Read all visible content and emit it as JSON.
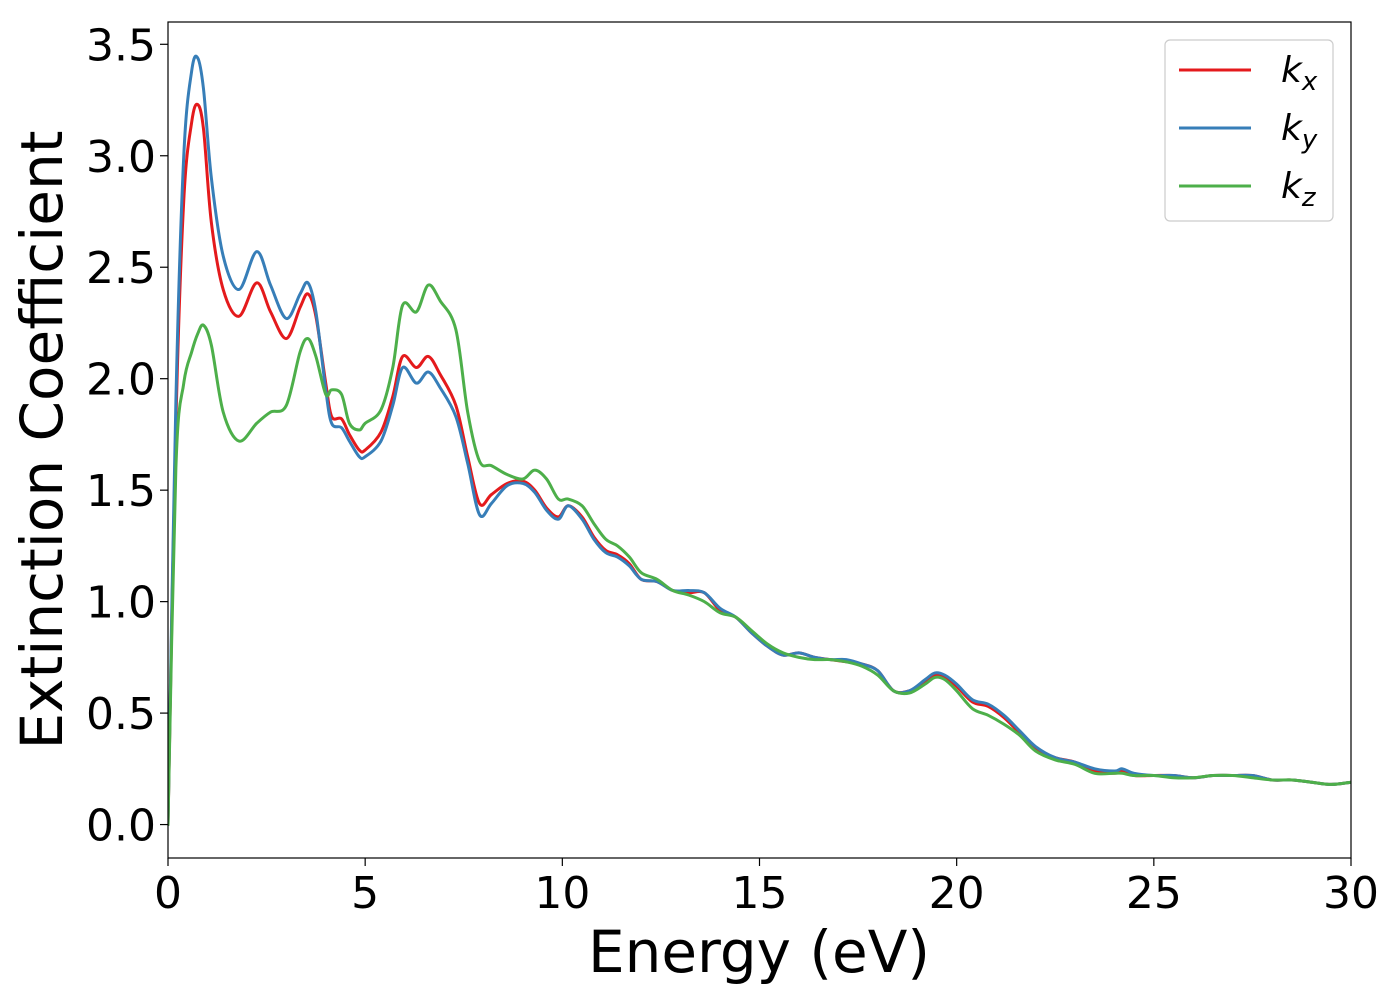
{
  "chart_data": {
    "type": "line",
    "xlabel": "Energy (eV)",
    "ylabel": "Extinction Coefficient",
    "xlim": [
      0,
      30
    ],
    "ylim": [
      -0.15,
      3.6
    ],
    "xticks": [
      0,
      5,
      10,
      15,
      20,
      25,
      30
    ],
    "xtick_labels": [
      "0",
      "5",
      "10",
      "15",
      "20",
      "25",
      "30"
    ],
    "yticks": [
      0.0,
      0.5,
      1.0,
      1.5,
      2.0,
      2.5,
      3.0,
      3.5
    ],
    "ytick_labels": [
      "0.0",
      "0.5",
      "1.0",
      "1.5",
      "2.0",
      "2.5",
      "3.0",
      "3.5"
    ],
    "grid": false,
    "legend_position": "top-right",
    "series": [
      {
        "name": "k",
        "sub": "x",
        "color": "#e41a1c",
        "x": [
          0,
          0.2,
          0.4,
          0.6,
          0.75,
          0.9,
          1.1,
          1.4,
          1.8,
          2.25,
          2.6,
          3.0,
          3.35,
          3.55,
          3.75,
          4.0,
          4.15,
          4.4,
          4.6,
          4.85,
          5.0,
          5.4,
          5.7,
          5.95,
          6.3,
          6.6,
          6.9,
          7.3,
          7.6,
          7.9,
          8.2,
          8.6,
          9.0,
          9.3,
          9.6,
          9.9,
          10.15,
          10.5,
          10.8,
          11.1,
          11.4,
          11.7,
          12.0,
          12.4,
          12.8,
          13.2,
          13.6,
          14.0,
          14.4,
          14.8,
          15.2,
          15.6,
          16.0,
          16.4,
          16.8,
          17.2,
          17.6,
          18.0,
          18.4,
          18.8,
          19.2,
          19.45,
          19.7,
          20.0,
          20.4,
          20.8,
          21.2,
          21.6,
          22.0,
          22.5,
          23.0,
          23.5,
          24.0,
          24.2,
          24.5,
          25.0,
          25.5,
          26.0,
          26.5,
          27.0,
          27.5,
          28.0,
          28.5,
          29.0,
          29.5,
          30.0
        ],
        "y": [
          0.0,
          1.8,
          2.8,
          3.15,
          3.23,
          3.12,
          2.7,
          2.4,
          2.28,
          2.43,
          2.3,
          2.18,
          2.32,
          2.38,
          2.28,
          1.98,
          1.83,
          1.82,
          1.75,
          1.68,
          1.68,
          1.76,
          1.92,
          2.1,
          2.05,
          2.1,
          2.02,
          1.88,
          1.65,
          1.44,
          1.48,
          1.53,
          1.54,
          1.5,
          1.42,
          1.38,
          1.43,
          1.38,
          1.29,
          1.23,
          1.21,
          1.17,
          1.1,
          1.09,
          1.05,
          1.04,
          1.04,
          0.96,
          0.93,
          0.86,
          0.8,
          0.76,
          0.77,
          0.75,
          0.74,
          0.73,
          0.72,
          0.69,
          0.6,
          0.6,
          0.64,
          0.67,
          0.66,
          0.62,
          0.55,
          0.53,
          0.48,
          0.41,
          0.34,
          0.3,
          0.28,
          0.24,
          0.23,
          0.24,
          0.22,
          0.22,
          0.22,
          0.21,
          0.22,
          0.22,
          0.22,
          0.2,
          0.2,
          0.19,
          0.18,
          0.19
        ]
      },
      {
        "name": "k",
        "sub": "y",
        "color": "#377eb8",
        "x": [
          0,
          0.2,
          0.4,
          0.6,
          0.75,
          0.9,
          1.1,
          1.4,
          1.8,
          2.25,
          2.6,
          3.0,
          3.35,
          3.55,
          3.75,
          4.0,
          4.15,
          4.4,
          4.6,
          4.85,
          5.0,
          5.4,
          5.7,
          5.95,
          6.3,
          6.6,
          6.9,
          7.3,
          7.6,
          7.9,
          8.2,
          8.6,
          9.0,
          9.3,
          9.6,
          9.9,
          10.15,
          10.5,
          10.8,
          11.1,
          11.4,
          11.7,
          12.0,
          12.4,
          12.8,
          13.2,
          13.6,
          14.0,
          14.4,
          14.8,
          15.2,
          15.6,
          16.0,
          16.4,
          16.8,
          17.2,
          17.6,
          18.0,
          18.4,
          18.8,
          19.2,
          19.45,
          19.7,
          20.0,
          20.4,
          20.8,
          21.2,
          21.6,
          22.0,
          22.5,
          23.0,
          23.5,
          24.0,
          24.2,
          24.5,
          25.0,
          25.5,
          26.0,
          26.5,
          27.0,
          27.5,
          28.0,
          28.5,
          29.0,
          29.5,
          30.0
        ],
        "y": [
          0.0,
          1.9,
          3.0,
          3.38,
          3.44,
          3.3,
          2.9,
          2.55,
          2.4,
          2.57,
          2.42,
          2.27,
          2.38,
          2.43,
          2.3,
          1.95,
          1.8,
          1.78,
          1.72,
          1.65,
          1.65,
          1.72,
          1.88,
          2.05,
          1.98,
          2.03,
          1.96,
          1.83,
          1.62,
          1.39,
          1.44,
          1.52,
          1.53,
          1.49,
          1.41,
          1.37,
          1.43,
          1.37,
          1.28,
          1.22,
          1.2,
          1.16,
          1.1,
          1.09,
          1.05,
          1.05,
          1.04,
          0.97,
          0.93,
          0.86,
          0.8,
          0.76,
          0.77,
          0.75,
          0.74,
          0.74,
          0.72,
          0.69,
          0.6,
          0.6,
          0.65,
          0.68,
          0.67,
          0.63,
          0.56,
          0.54,
          0.49,
          0.42,
          0.35,
          0.3,
          0.28,
          0.25,
          0.24,
          0.25,
          0.23,
          0.22,
          0.22,
          0.21,
          0.22,
          0.22,
          0.22,
          0.2,
          0.2,
          0.19,
          0.18,
          0.19
        ]
      },
      {
        "name": "k",
        "sub": "z",
        "color": "#4daf4a",
        "x": [
          0,
          0.2,
          0.4,
          0.6,
          0.75,
          0.9,
          1.1,
          1.4,
          1.8,
          2.25,
          2.6,
          3.0,
          3.35,
          3.55,
          3.75,
          4.0,
          4.15,
          4.4,
          4.6,
          4.85,
          5.0,
          5.4,
          5.7,
          5.95,
          6.3,
          6.6,
          6.9,
          7.3,
          7.6,
          7.9,
          8.2,
          8.6,
          9.0,
          9.3,
          9.6,
          9.9,
          10.15,
          10.5,
          10.8,
          11.1,
          11.4,
          11.7,
          12.0,
          12.4,
          12.8,
          13.2,
          13.6,
          14.0,
          14.4,
          14.8,
          15.2,
          15.6,
          16.0,
          16.4,
          16.8,
          17.2,
          17.6,
          18.0,
          18.4,
          18.8,
          19.2,
          19.45,
          19.7,
          20.0,
          20.4,
          20.8,
          21.2,
          21.6,
          22.0,
          22.5,
          23.0,
          23.5,
          24.0,
          24.2,
          24.5,
          25.0,
          25.5,
          26.0,
          26.5,
          27.0,
          27.5,
          28.0,
          28.5,
          29.0,
          29.5,
          30.0
        ],
        "y": [
          0.0,
          1.6,
          1.98,
          2.12,
          2.2,
          2.24,
          2.15,
          1.85,
          1.72,
          1.8,
          1.85,
          1.88,
          2.12,
          2.18,
          2.1,
          1.93,
          1.95,
          1.93,
          1.8,
          1.77,
          1.8,
          1.86,
          2.05,
          2.33,
          2.3,
          2.42,
          2.35,
          2.22,
          1.85,
          1.63,
          1.61,
          1.57,
          1.55,
          1.59,
          1.55,
          1.46,
          1.46,
          1.43,
          1.35,
          1.28,
          1.25,
          1.2,
          1.13,
          1.1,
          1.05,
          1.03,
          1.0,
          0.95,
          0.93,
          0.87,
          0.81,
          0.77,
          0.75,
          0.74,
          0.74,
          0.73,
          0.71,
          0.67,
          0.6,
          0.59,
          0.63,
          0.66,
          0.65,
          0.6,
          0.52,
          0.49,
          0.45,
          0.4,
          0.33,
          0.29,
          0.27,
          0.23,
          0.23,
          0.23,
          0.22,
          0.22,
          0.21,
          0.21,
          0.22,
          0.22,
          0.21,
          0.2,
          0.2,
          0.19,
          0.18,
          0.19
        ]
      }
    ]
  }
}
